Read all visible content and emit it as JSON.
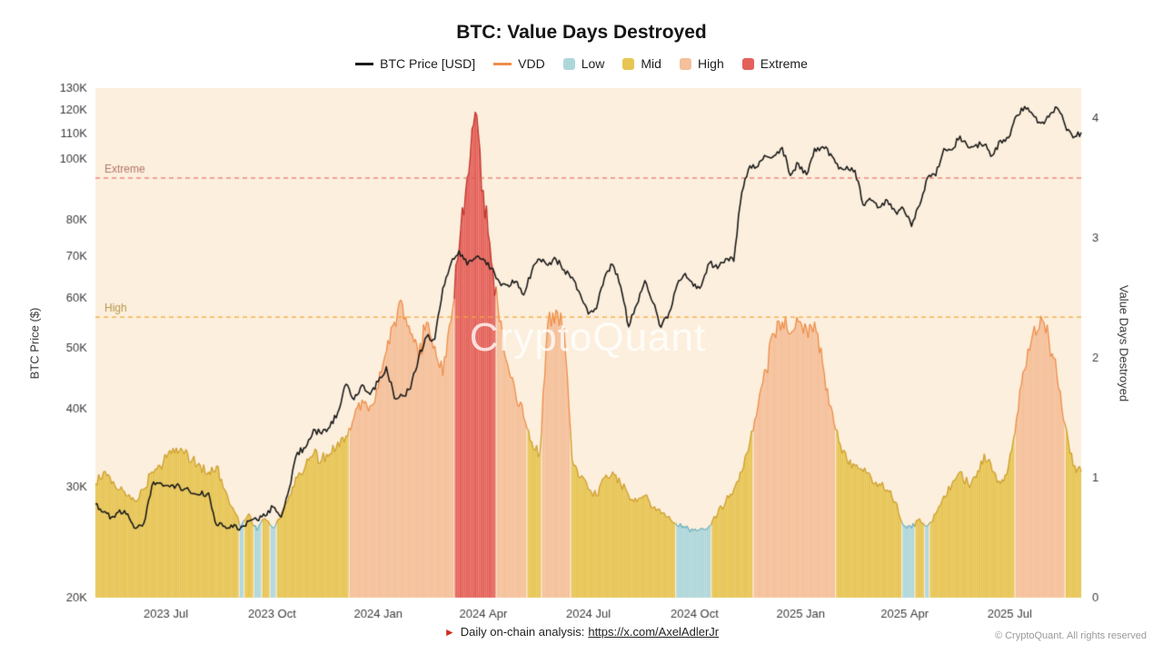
{
  "title": "BTC: Value Days Destroyed",
  "watermark": "CryptoQuant",
  "legend": {
    "items": [
      {
        "label": "BTC Price [USD]",
        "marker": "line",
        "color": "#1b1b1b"
      },
      {
        "label": "VDD",
        "marker": "line",
        "color": "#ef8e4b"
      },
      {
        "label": "Low",
        "marker": "swatch",
        "color": "#aed7dc"
      },
      {
        "label": "Mid",
        "marker": "swatch",
        "color": "#e7c553"
      },
      {
        "label": "High",
        "marker": "swatch",
        "color": "#f5c09a"
      },
      {
        "label": "Extreme",
        "marker": "swatch",
        "color": "#e4615a"
      }
    ]
  },
  "axes": {
    "left_title": "BTC Price ($)",
    "right_title": "Value Days Destroyed",
    "left_ticks": [
      {
        "label": "130K",
        "value": 130
      },
      {
        "label": "120K",
        "value": 120
      },
      {
        "label": "110K",
        "value": 110
      },
      {
        "label": "100K",
        "value": 100
      },
      {
        "label": "80K",
        "value": 80
      },
      {
        "label": "70K",
        "value": 70
      },
      {
        "label": "60K",
        "value": 60
      },
      {
        "label": "50K",
        "value": 50
      },
      {
        "label": "40K",
        "value": 40
      },
      {
        "label": "30K",
        "value": 30
      },
      {
        "label": "20K",
        "value": 20
      }
    ],
    "right_ticks": [
      {
        "label": "0",
        "value": 0
      },
      {
        "label": "1",
        "value": 1
      },
      {
        "label": "2",
        "value": 2
      },
      {
        "label": "3",
        "value": 3
      },
      {
        "label": "4",
        "value": 4
      }
    ],
    "x_ticks": [
      {
        "label": "2023 Jul",
        "date": "2023-07-01"
      },
      {
        "label": "2023 Oct",
        "date": "2023-10-01"
      },
      {
        "label": "2024 Jan",
        "date": "2024-01-01"
      },
      {
        "label": "2024 Apr",
        "date": "2024-04-01"
      },
      {
        "label": "2024 Jul",
        "date": "2024-07-01"
      },
      {
        "label": "2024 Oct",
        "date": "2024-10-01"
      },
      {
        "label": "2025 Jan",
        "date": "2025-01-01"
      },
      {
        "label": "2025 Apr",
        "date": "2025-04-01"
      },
      {
        "label": "2025 Jul",
        "date": "2025-07-01"
      }
    ]
  },
  "footer": {
    "text": "Daily on-chain analysis:",
    "link": "https://x.com/AxelAdlerJr",
    "copyright": "© CryptoQuant. All rights reserved"
  },
  "colors": {
    "plot_bg": "#fcefdd",
    "price_line": "#1b1b1b",
    "axis_text": "#3c3c3c",
    "bands": {
      "low": {
        "fill": "#aed7dc",
        "edge": "#74b4bf"
      },
      "mid": {
        "fill": "#e7c553",
        "edge": "#cfa02e"
      },
      "high": {
        "fill": "#f5c09a",
        "edge": "#ef8e4b"
      },
      "extreme": {
        "fill": "#e4615a",
        "edge": "#c2362e"
      }
    }
  },
  "chart_data": {
    "type": "line+area",
    "title": "BTC: Value Days Destroyed",
    "start_date": "2023-05-01",
    "interval_days": 7,
    "price_axis": {
      "scale": "log",
      "min_k": 20,
      "max_k": 130,
      "unit": "K USD",
      "side": "left"
    },
    "vdd_axis": {
      "scale": "linear",
      "min": 0,
      "max": 4.25,
      "side": "right"
    },
    "bands": {
      "low_max": 0.62,
      "mid_max": 1.42,
      "high_max": 2.5
    },
    "thresholds": [
      {
        "label": "Extreme",
        "value": 3.5,
        "line_color": "#e2584b",
        "label_color": "#b3776b"
      },
      {
        "label": "High",
        "value": 2.34,
        "line_color": "#f2a93c",
        "label_color": "#b9984f"
      }
    ],
    "series": [
      {
        "name": "BTC Price [USD]",
        "axis": "left",
        "values_k": [
          28.2,
          27.4,
          26.9,
          27.6,
          27.2,
          25.8,
          26.3,
          30.2,
          30.5,
          30.2,
          30.2,
          29.8,
          29.3,
          29.2,
          29.4,
          26.1,
          26.0,
          25.9,
          25.9,
          26.5,
          26.6,
          27.0,
          27.9,
          26.9,
          29.9,
          34.1,
          34.7,
          37.1,
          36.5,
          37.4,
          39.5,
          43.8,
          41.4,
          43.7,
          42.2,
          44.2,
          46.7,
          41.6,
          42.0,
          43.1,
          48.3,
          52.2,
          51.7,
          62.4,
          68.3,
          71.5,
          67.9,
          69.6,
          69.4,
          67.1,
          63.8,
          63.1,
          63.9,
          60.8,
          66.3,
          69.3,
          67.8,
          69.3,
          66.7,
          64.9,
          61.0,
          56.7,
          57.8,
          64.8,
          68.0,
          62.8,
          54.1,
          58.7,
          64.1,
          59.1,
          54.0,
          57.0,
          63.2,
          65.8,
          62.8,
          62.9,
          68.4,
          67.0,
          69.5,
          68.8,
          88.7,
          97.7,
          97.5,
          101.2,
          101.4,
          104.5,
          94.3,
          98.6,
          94.6,
          104.2,
          104.8,
          102.1,
          96.6,
          97.5,
          96.1,
          84.7,
          86.1,
          83.9,
          86.1,
          82.6,
          83.5,
          78.2,
          84.5,
          93.7,
          94.2,
          104.1,
          103.6,
          109.0,
          104.6,
          105.7,
          105.5,
          101.5,
          107.3,
          108.3,
          117.5,
          121.5,
          118.0,
          114.3,
          116.9,
          121.0,
          113.5,
          108.3,
          110.5
        ]
      },
      {
        "name": "VDD",
        "axis": "right",
        "values": [
          0.95,
          1.05,
          0.95,
          0.9,
          0.85,
          0.8,
          0.9,
          1.05,
          1.1,
          1.2,
          1.25,
          1.2,
          1.15,
          1.1,
          1.05,
          1.1,
          0.9,
          0.75,
          0.58,
          0.7,
          0.56,
          0.66,
          0.58,
          0.7,
          0.85,
          1.0,
          1.1,
          1.2,
          1.15,
          1.2,
          1.3,
          1.35,
          1.5,
          1.65,
          1.6,
          1.75,
          2.05,
          2.3,
          2.45,
          2.2,
          2.0,
          2.3,
          2.1,
          1.85,
          2.3,
          2.9,
          3.5,
          4.05,
          3.4,
          2.8,
          2.3,
          1.95,
          1.7,
          1.5,
          1.3,
          1.2,
          2.3,
          2.4,
          2.25,
          1.15,
          1.0,
          0.9,
          0.85,
          1.0,
          1.05,
          0.95,
          0.85,
          0.8,
          0.85,
          0.75,
          0.7,
          0.68,
          0.6,
          0.58,
          0.56,
          0.58,
          0.6,
          0.7,
          0.8,
          0.9,
          1.05,
          1.3,
          1.6,
          1.9,
          2.2,
          2.3,
          2.2,
          2.3,
          2.25,
          2.3,
          1.95,
          1.6,
          1.3,
          1.15,
          1.1,
          1.05,
          1.0,
          0.95,
          0.9,
          0.8,
          0.6,
          0.58,
          0.66,
          0.6,
          0.7,
          0.85,
          0.95,
          1.05,
          0.95,
          1.0,
          1.2,
          1.05,
          0.95,
          1.1,
          1.5,
          1.9,
          2.2,
          2.35,
          2.15,
          1.85,
          1.45,
          1.1,
          1.05
        ]
      }
    ]
  }
}
